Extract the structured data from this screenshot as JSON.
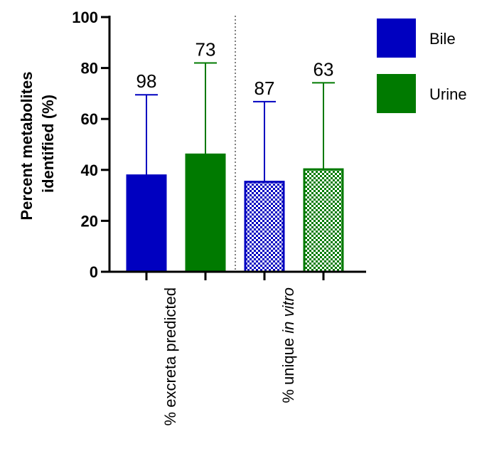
{
  "chart_data": {
    "type": "bar",
    "ylabel_line1": "Percent metabolites",
    "ylabel_line2": "identified (%)",
    "ylim": [
      0,
      100
    ],
    "yticks": [
      "0",
      "20",
      "40",
      "60",
      "80",
      "100"
    ],
    "yticks_values": [
      0,
      20,
      40,
      60,
      80,
      100
    ],
    "categories": [
      {
        "label": "% excreta predicted",
        "label_plain": "% excreta predicted",
        "label_italic": ""
      },
      {
        "label": "% unique in vitro",
        "label_plain": "% unique ",
        "label_italic": "in vitro"
      }
    ],
    "series": [
      {
        "name": "Bile",
        "color": "#0000c0"
      },
      {
        "name": "Urine",
        "color": "#007a00"
      }
    ],
    "bars": [
      {
        "category": 0,
        "series": 0,
        "value": 37.8,
        "error_upper": 69.5,
        "label": "98",
        "pattern": "solid"
      },
      {
        "category": 0,
        "series": 1,
        "value": 46.0,
        "error_upper": 82.0,
        "label": "73",
        "pattern": "solid"
      },
      {
        "category": 1,
        "series": 0,
        "value": 35.3,
        "error_upper": 66.8,
        "label": "87",
        "pattern": "checker"
      },
      {
        "category": 1,
        "series": 1,
        "value": 40.2,
        "error_upper": 74.2,
        "label": "63",
        "pattern": "checker"
      }
    ],
    "legend_position": "top-right",
    "separator": "dotted line between categories",
    "grid": false
  }
}
